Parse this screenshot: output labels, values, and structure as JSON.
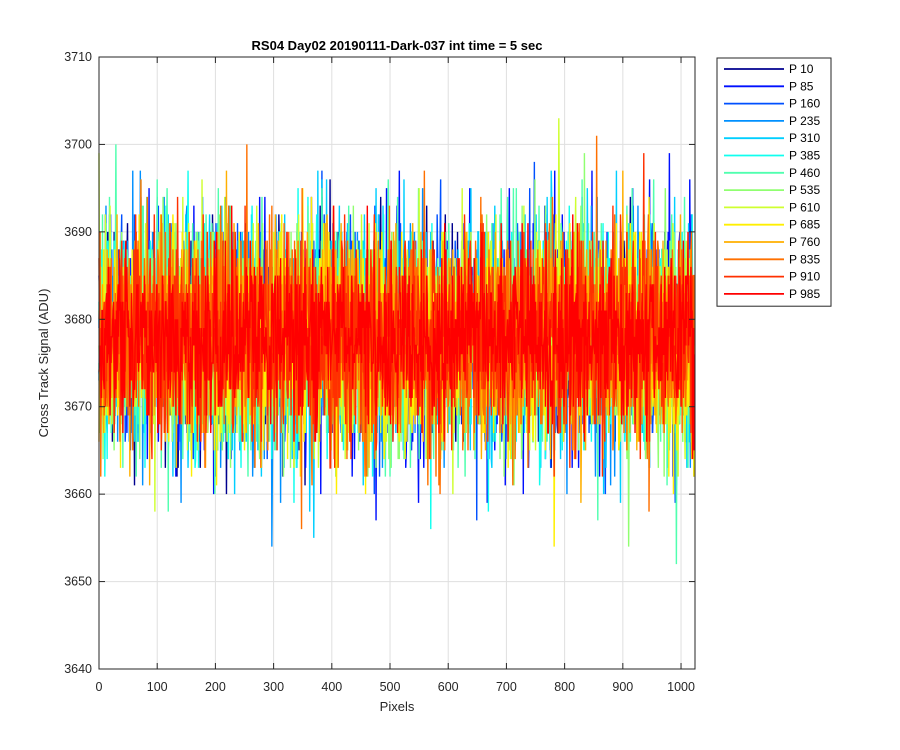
{
  "chart_data": {
    "type": "line",
    "title": "RS04 Day02 20190111-Dark-037 int time = 5 sec",
    "xlabel": "Pixels",
    "ylabel": "Cross Track Signal (ADU)",
    "xlim": [
      0,
      1024
    ],
    "ylim": [
      3640,
      3710
    ],
    "xticks": [
      0,
      100,
      200,
      300,
      400,
      500,
      600,
      700,
      800,
      900,
      1000
    ],
    "yticks": [
      3640,
      3650,
      3660,
      3670,
      3680,
      3690,
      3700,
      3710
    ],
    "grid": true,
    "legend_position": "outside-top-right",
    "n_points": 1024,
    "series": [
      {
        "name": "P 10",
        "color": "#00008f",
        "mean": 3677.9,
        "min": 3655,
        "max": 3701
      },
      {
        "name": "P 85",
        "color": "#0010ff",
        "mean": 3677.9,
        "min": 3652,
        "max": 3707
      },
      {
        "name": "P 160",
        "color": "#0050ff",
        "mean": 3678.0,
        "min": 3653,
        "max": 3705
      },
      {
        "name": "P 235",
        "color": "#0090ff",
        "mean": 3678.0,
        "min": 3654,
        "max": 3702
      },
      {
        "name": "P 310",
        "color": "#00cfff",
        "mean": 3678.0,
        "min": 3655,
        "max": 3706
      },
      {
        "name": "P 385",
        "color": "#10ffef",
        "mean": 3678.0,
        "min": 3656,
        "max": 3705
      },
      {
        "name": "P 460",
        "color": "#50ffaf",
        "mean": 3678.0,
        "min": 3649,
        "max": 3704
      },
      {
        "name": "P 535",
        "color": "#90ff70",
        "mean": 3678.0,
        "min": 3654,
        "max": 3705
      },
      {
        "name": "P 610",
        "color": "#cfff30",
        "mean": 3678.0,
        "min": 3652,
        "max": 3703
      },
      {
        "name": "P 685",
        "color": "#ffef00",
        "mean": 3678.0,
        "min": 3654,
        "max": 3702
      },
      {
        "name": "P 760",
        "color": "#ffaf00",
        "mean": 3678.0,
        "min": 3656,
        "max": 3703
      },
      {
        "name": "P 835",
        "color": "#ff7000",
        "mean": 3678.0,
        "min": 3653,
        "max": 3704
      },
      {
        "name": "P 910",
        "color": "#ff3000",
        "mean": 3678.0,
        "min": 3653,
        "max": 3702
      },
      {
        "name": "P 985",
        "color": "#ff0000",
        "mean": 3678.0,
        "min": 3659,
        "max": 3698
      }
    ]
  }
}
